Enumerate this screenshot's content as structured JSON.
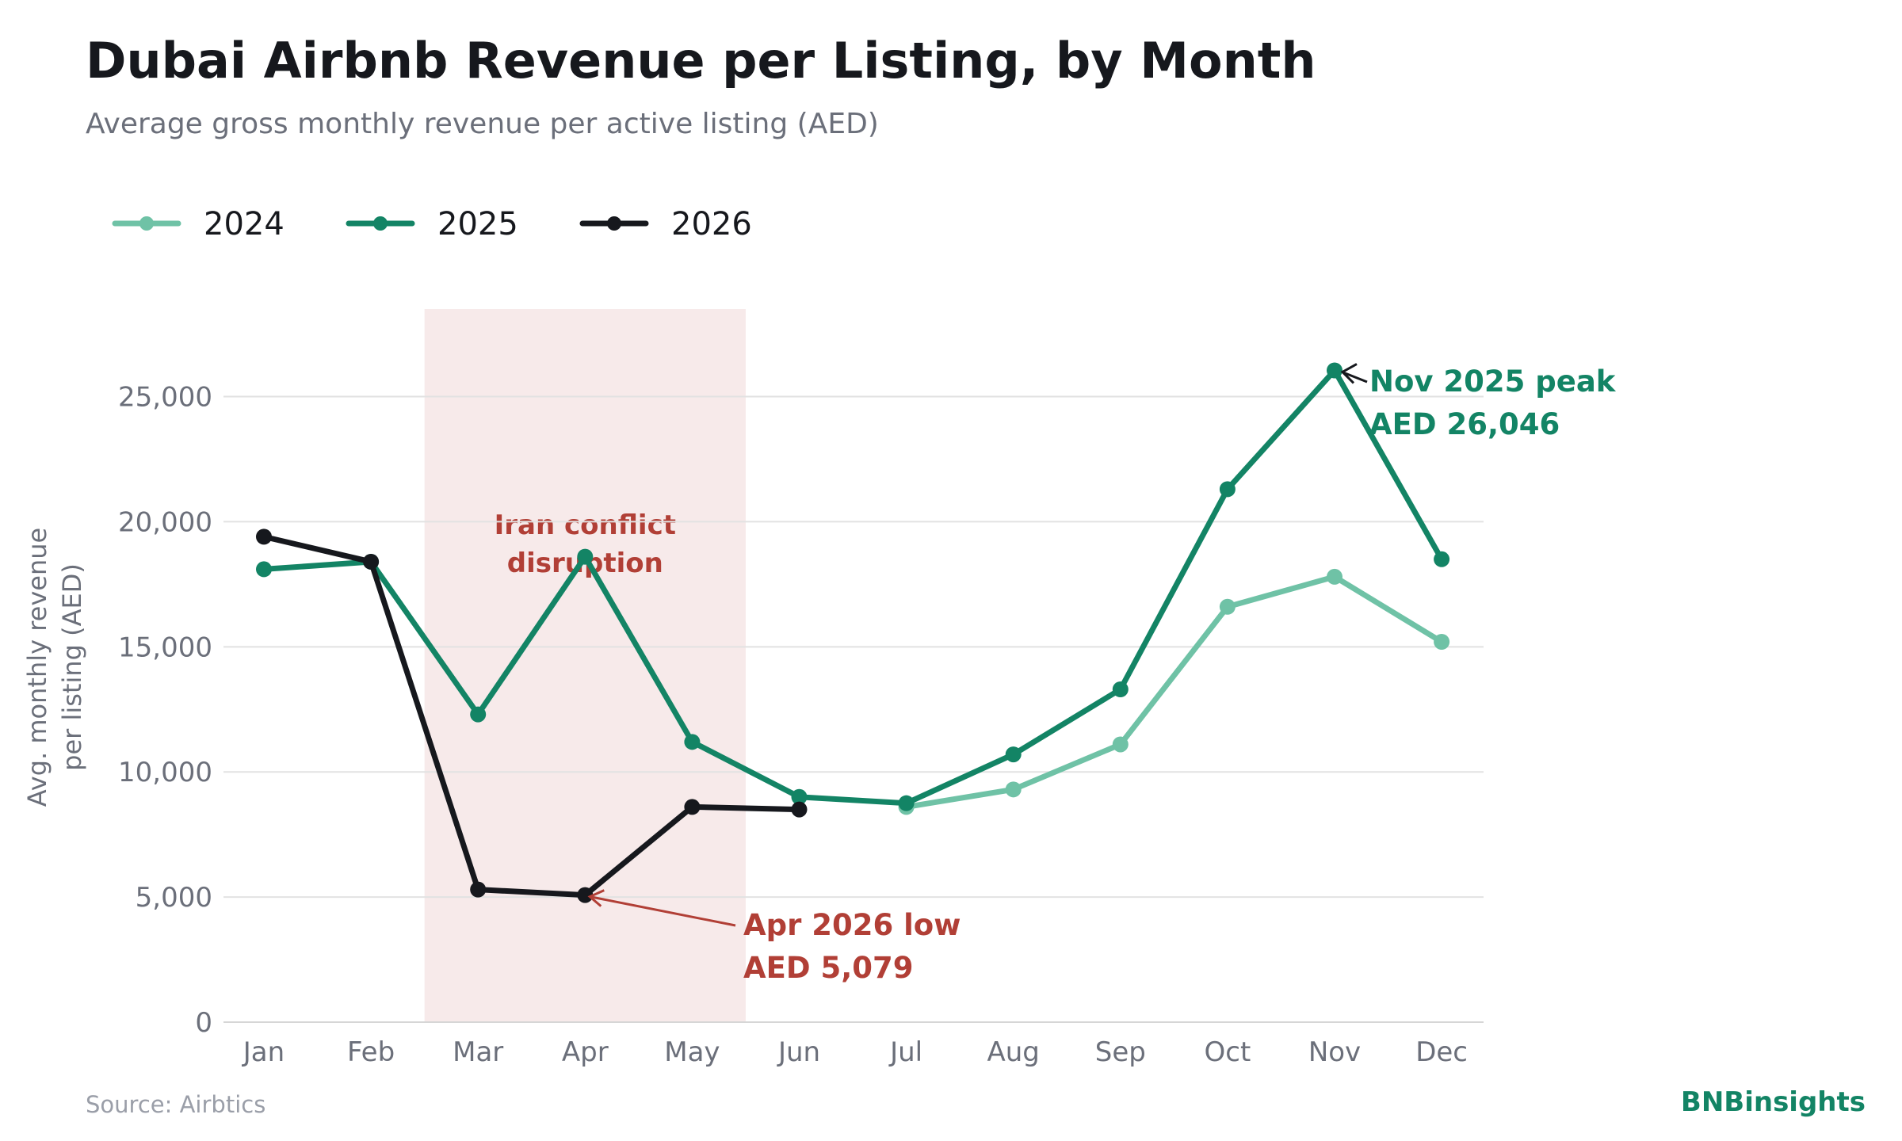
{
  "title": "Dubai Airbnb Revenue per Listing, by Month",
  "subtitle": "Average gross monthly revenue per active listing (AED)",
  "source": "Source: Airbtics",
  "brand": "BNBinsights",
  "colors": {
    "2024": "#6fc2a6",
    "2025": "#138465",
    "2026": "#16181d",
    "shade": "#f7eaea",
    "annotation_red": "#b13f36",
    "annotation_green": "#138465",
    "grid": "#e2e2e2"
  },
  "chart_data": {
    "type": "line",
    "categories": [
      "Jan",
      "Feb",
      "Mar",
      "Apr",
      "May",
      "Jun",
      "Jul",
      "Aug",
      "Sep",
      "Oct",
      "Nov",
      "Dec"
    ],
    "ylabel_lines": [
      "Avg. monthly revenue",
      "per listing (AED)"
    ],
    "ylim": [
      0,
      28500
    ],
    "yticks": [
      0,
      5000,
      10000,
      15000,
      20000,
      25000
    ],
    "ytick_labels": [
      "0",
      "5,000",
      "10,000",
      "15,000",
      "20,000",
      "25,000"
    ],
    "grid": "horizontal",
    "legend": "top-left",
    "series": [
      {
        "name": "2024",
        "values": [
          null,
          null,
          null,
          null,
          null,
          null,
          8600,
          9300,
          11100,
          16600,
          17800,
          15200
        ]
      },
      {
        "name": "2025",
        "values": [
          18100,
          18400,
          12300,
          18600,
          11200,
          9000,
          8750,
          10700,
          13300,
          21300,
          26046,
          18500
        ]
      },
      {
        "name": "2026",
        "values": [
          19400,
          18400,
          5300,
          5079,
          8600,
          8500,
          null,
          null,
          null,
          null,
          null,
          null
        ]
      }
    ],
    "shaded_region": {
      "from": "Mar",
      "to": "May",
      "label_lines": [
        "Iran conflict",
        "disruption"
      ]
    },
    "annotations": [
      {
        "series": "2025",
        "category": "Nov",
        "value": 26046,
        "lines": [
          "Nov 2025 peak",
          "AED 26,046"
        ]
      },
      {
        "series": "2026",
        "category": "Apr",
        "value": 5079,
        "lines": [
          "Apr 2026 low",
          "AED 5,079"
        ]
      }
    ]
  }
}
